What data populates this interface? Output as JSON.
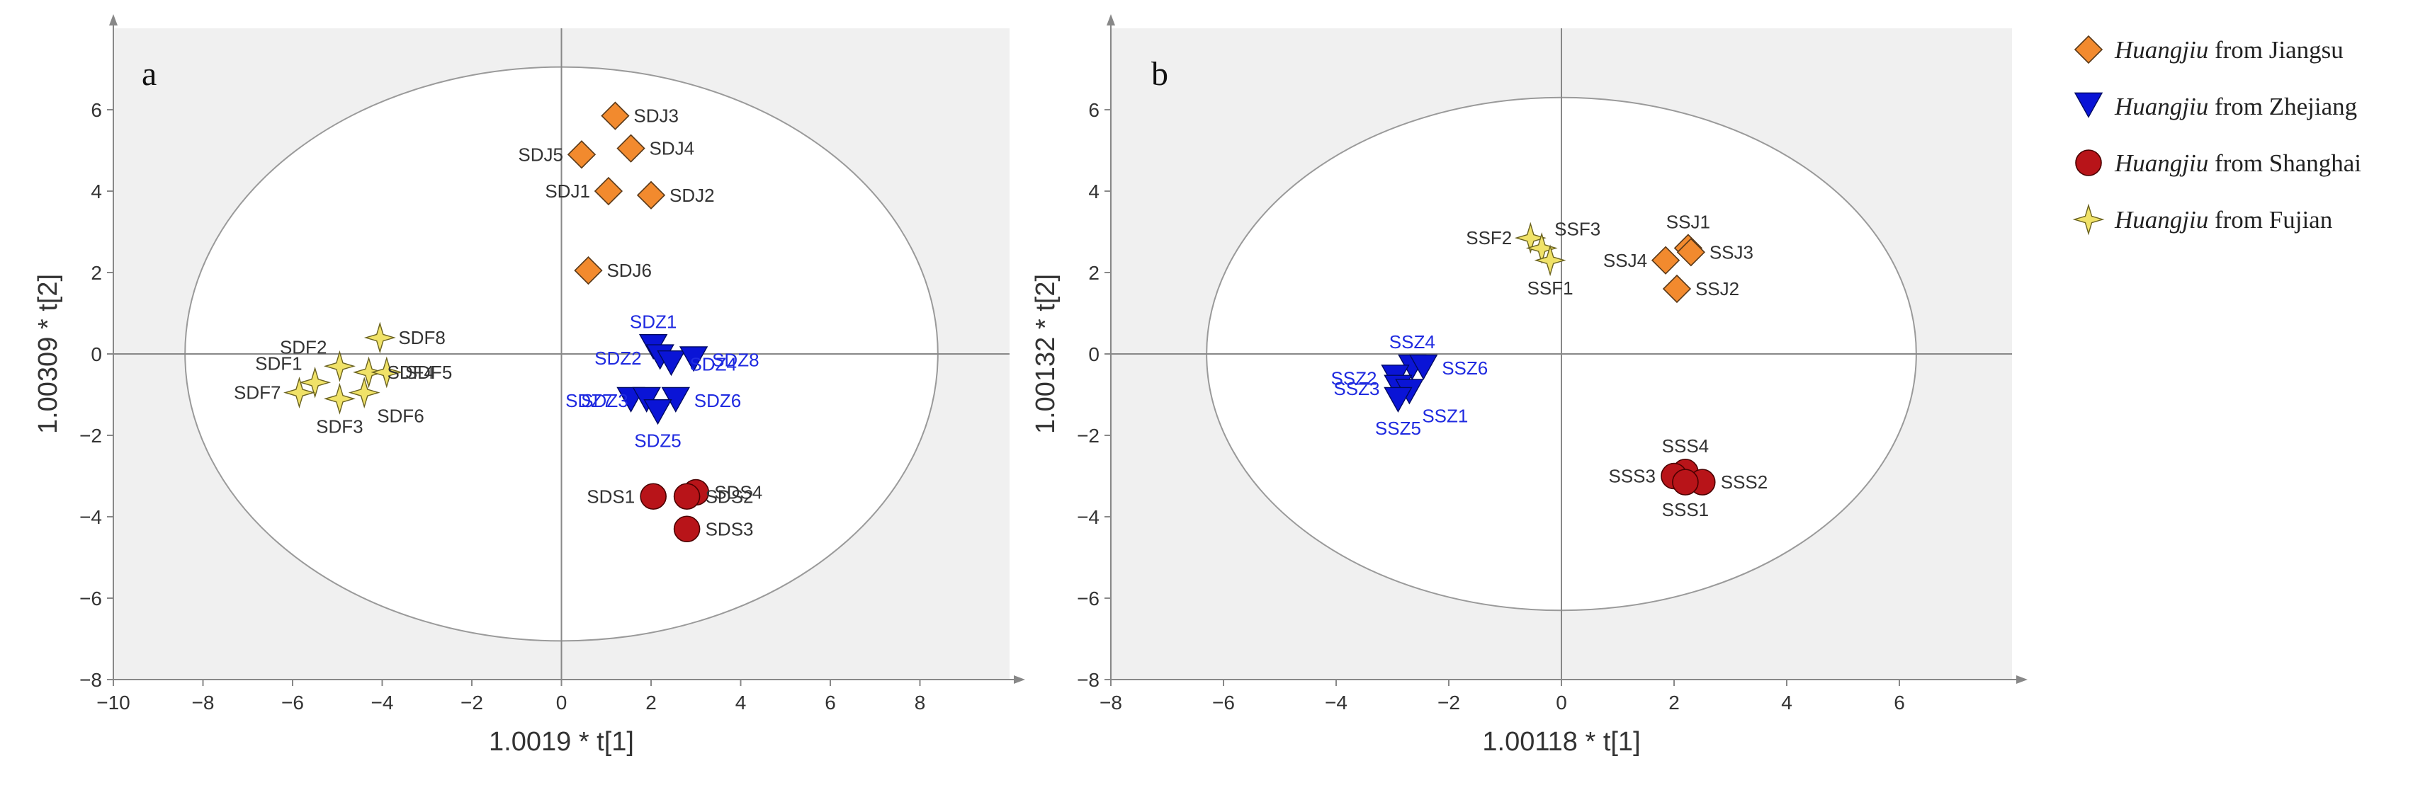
{
  "chart_data": [
    {
      "type": "scatter",
      "panel_label": "a",
      "xlabel": "1.0019 * t[1]",
      "ylabel": "1.00309 * t[2]",
      "xlim": [
        -10,
        10
      ],
      "ylim": [
        -8,
        8
      ],
      "xticks": [
        -10,
        -8,
        -6,
        -4,
        -2,
        0,
        2,
        4,
        6,
        8
      ],
      "yticks": [
        -8,
        -6,
        -4,
        -2,
        0,
        2,
        4,
        6
      ],
      "ellipse": {
        "rx": 8.4,
        "ry": 7.05
      },
      "series": [
        {
          "name": "Jiangsu",
          "marker": "diamond",
          "color": "#F28A2E",
          "label_color": "#333333",
          "points": [
            {
              "label": "SDJ3",
              "x": 1.2,
              "y": 5.85,
              "pos": "r"
            },
            {
              "label": "SDJ5",
              "x": 0.45,
              "y": 4.9,
              "pos": "l"
            },
            {
              "label": "SDJ4",
              "x": 1.55,
              "y": 5.05,
              "pos": "r"
            },
            {
              "label": "SDJ1",
              "x": 1.05,
              "y": 4.0,
              "pos": "l"
            },
            {
              "label": "SDJ2",
              "x": 2.0,
              "y": 3.9,
              "pos": "r"
            },
            {
              "label": "SDJ6",
              "x": 0.6,
              "y": 2.05,
              "pos": "r"
            }
          ]
        },
        {
          "name": "Zhejiang",
          "marker": "triangle",
          "color": "#0A14D6",
          "label_color": "#1F2AE0",
          "points": [
            {
              "label": "SDZ1",
              "x": 2.05,
              "y": 0.15,
              "pos": "t"
            },
            {
              "label": "SDZ2",
              "x": 2.2,
              "y": -0.1,
              "pos": "l"
            },
            {
              "label": "SDZ4",
              "x": 2.45,
              "y": -0.25,
              "pos": "r"
            },
            {
              "label": "SDZ8",
              "x": 2.95,
              "y": -0.15,
              "pos": "r"
            },
            {
              "label": "SDZ7",
              "x": 1.55,
              "y": -1.15,
              "pos": "l"
            },
            {
              "label": "SDZ3",
              "x": 1.9,
              "y": -1.15,
              "pos": "l"
            },
            {
              "label": "SDZ6",
              "x": 2.55,
              "y": -1.15,
              "pos": "r"
            },
            {
              "label": "SDZ5",
              "x": 2.15,
              "y": -1.45,
              "pos": "b"
            }
          ]
        },
        {
          "name": "Shanghai",
          "marker": "circle",
          "color": "#B81419",
          "label_color": "#333333",
          "points": [
            {
              "label": "SDS1",
              "x": 2.05,
              "y": -3.5,
              "pos": "l"
            },
            {
              "label": "SDS4",
              "x": 3.0,
              "y": -3.4,
              "pos": "r"
            },
            {
              "label": "SDS2",
              "x": 2.8,
              "y": -3.5,
              "pos": "r"
            },
            {
              "label": "SDS3",
              "x": 2.8,
              "y": -4.3,
              "pos": "r"
            }
          ]
        },
        {
          "name": "Fujian",
          "marker": "star",
          "color": "#F0E268",
          "label_color": "#333333",
          "points": [
            {
              "label": "SDF2",
              "x": -4.95,
              "y": -0.3,
              "pos": "tl"
            },
            {
              "label": "SDF8",
              "x": -4.05,
              "y": 0.4,
              "pos": "r"
            },
            {
              "label": "SDF1",
              "x": -5.5,
              "y": -0.7,
              "pos": "tl"
            },
            {
              "label": "SDF4",
              "x": -4.3,
              "y": -0.45,
              "pos": "r"
            },
            {
              "label": "SDF5",
              "x": -3.9,
              "y": -0.45,
              "pos": "r"
            },
            {
              "label": "SDF7",
              "x": -5.85,
              "y": -0.95,
              "pos": "l"
            },
            {
              "label": "SDF3",
              "x": -4.95,
              "y": -1.1,
              "pos": "b"
            },
            {
              "label": "SDF6",
              "x": -4.4,
              "y": -0.95,
              "pos": "br"
            }
          ]
        }
      ]
    },
    {
      "type": "scatter",
      "panel_label": "b",
      "xlabel": "1.00118 * t[1]",
      "ylabel": "1.00132 * t[2]",
      "xlim": [
        -8,
        8
      ],
      "ylim": [
        -8,
        8
      ],
      "xticks": [
        -8,
        -6,
        -4,
        -2,
        0,
        2,
        4,
        6
      ],
      "yticks": [
        -8,
        -6,
        -4,
        -2,
        0,
        2,
        4,
        6
      ],
      "ellipse": {
        "rx": 6.3,
        "ry": 6.3
      },
      "series": [
        {
          "name": "Jiangsu",
          "marker": "diamond",
          "color": "#F28A2E",
          "label_color": "#333333",
          "points": [
            {
              "label": "SSJ1",
              "x": 2.25,
              "y": 2.6,
              "pos": "t"
            },
            {
              "label": "SSJ3",
              "x": 2.3,
              "y": 2.5,
              "pos": "r"
            },
            {
              "label": "SSJ4",
              "x": 1.85,
              "y": 2.3,
              "pos": "l"
            },
            {
              "label": "SSJ2",
              "x": 2.05,
              "y": 1.6,
              "pos": "r"
            }
          ]
        },
        {
          "name": "Zhejiang",
          "marker": "triangle",
          "color": "#0A14D6",
          "label_color": "#1F2AE0",
          "points": [
            {
              "label": "SSZ4",
              "x": -2.65,
              "y": -0.35,
              "pos": "t"
            },
            {
              "label": "SSZ6",
              "x": -2.45,
              "y": -0.35,
              "pos": "r"
            },
            {
              "label": "SSZ2",
              "x": -2.95,
              "y": -0.6,
              "pos": "l"
            },
            {
              "label": "SSZ3",
              "x": -2.9,
              "y": -0.85,
              "pos": "l"
            },
            {
              "label": "SSZ1",
              "x": -2.7,
              "y": -0.95,
              "pos": "br"
            },
            {
              "label": "SSZ5",
              "x": -2.9,
              "y": -1.15,
              "pos": "b"
            }
          ]
        },
        {
          "name": "Shanghai",
          "marker": "circle",
          "color": "#B81419",
          "label_color": "#333333",
          "points": [
            {
              "label": "SSS4",
              "x": 2.2,
              "y": -2.9,
              "pos": "t"
            },
            {
              "label": "SSS3",
              "x": 2.0,
              "y": -3.0,
              "pos": "l"
            },
            {
              "label": "SSS2",
              "x": 2.5,
              "y": -3.15,
              "pos": "r"
            },
            {
              "label": "SSS1",
              "x": 2.2,
              "y": -3.15,
              "pos": "b"
            }
          ]
        },
        {
          "name": "Fujian",
          "marker": "star",
          "color": "#F0E268",
          "label_color": "#333333",
          "points": [
            {
              "label": "SSF2",
              "x": -0.55,
              "y": 2.85,
              "pos": "l"
            },
            {
              "label": "SSF3",
              "x": -0.35,
              "y": 2.6,
              "pos": "tr"
            },
            {
              "label": "SSF1",
              "x": -0.2,
              "y": 2.3,
              "pos": "b"
            }
          ]
        }
      ]
    }
  ],
  "legend": [
    {
      "italic": "Huangjiu",
      "rest": " from Jiangsu",
      "marker": "diamond",
      "color": "#F28A2E"
    },
    {
      "italic": "Huangjiu",
      "rest": " from Zhejiang",
      "marker": "triangle",
      "color": "#0A14D6"
    },
    {
      "italic": "Huangjiu",
      "rest": " from Shanghai",
      "marker": "circle",
      "color": "#B81419"
    },
    {
      "italic": "Huangjiu",
      "rest": " from Fujian",
      "marker": "star",
      "color": "#F0E268"
    }
  ]
}
